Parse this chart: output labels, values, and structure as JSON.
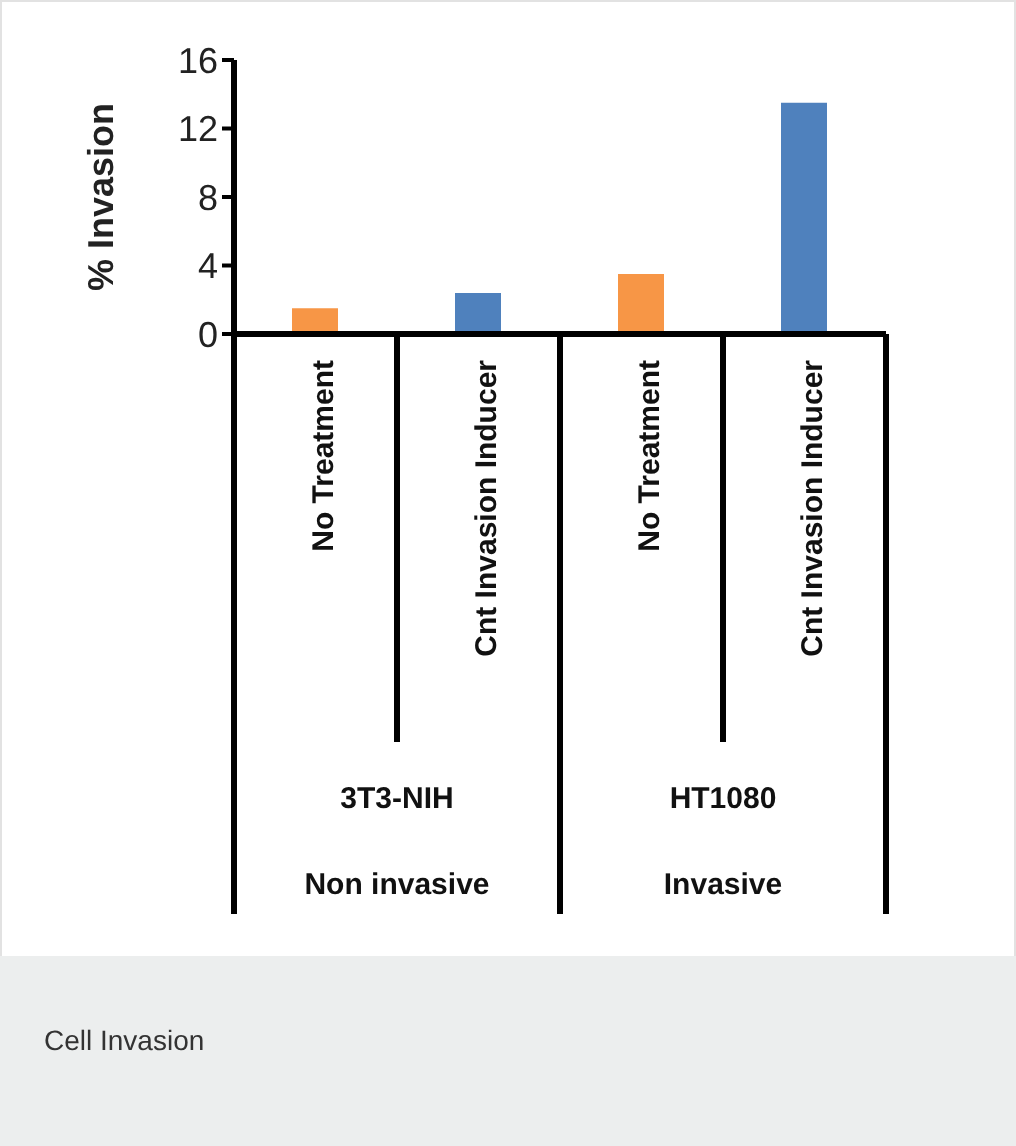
{
  "chart_data": {
    "type": "bar",
    "title": "Cell Invasion",
    "ylabel": "% Invasion",
    "categories": [
      "No Treatment",
      "Cnt Invasion Inducer",
      "No Treatment",
      "Cnt Invasion Inducer"
    ],
    "values": [
      1.5,
      2.4,
      3.5,
      13.5
    ],
    "colors": [
      "#f79646",
      "#4f81bd",
      "#f79646",
      "#4f81bd"
    ],
    "ylim": [
      0,
      16
    ],
    "yticks": [
      0,
      4,
      8,
      12,
      16
    ],
    "annotations": [
      "3T3-NIH",
      "Non invasive",
      "HT1080",
      "Invasive"
    ]
  }
}
